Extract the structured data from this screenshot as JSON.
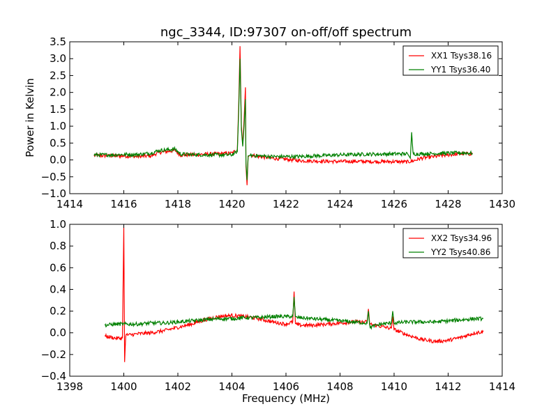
{
  "figure": {
    "title": "ngc_3344, ID:97307 on-off/off spectrum",
    "xlabel": "Frequency (MHz)",
    "ylabel": "Power in Kelvin"
  },
  "chart_data": [
    {
      "type": "line",
      "title": "ngc_3344, ID:97307 on-off/off spectrum",
      "xlabel": "",
      "ylabel": "Power in Kelvin",
      "xlim": [
        1414,
        1430
      ],
      "ylim": [
        -1.0,
        3.5
      ],
      "xticks": [
        1414,
        1416,
        1418,
        1420,
        1422,
        1424,
        1426,
        1428,
        1430
      ],
      "yticks": [
        -1.0,
        -0.5,
        0.0,
        0.5,
        1.0,
        1.5,
        2.0,
        2.5,
        3.0,
        3.5
      ],
      "xtick_labels": [
        "1414",
        "1416",
        "1418",
        "1420",
        "1422",
        "1424",
        "1426",
        "1428",
        "1430"
      ],
      "ytick_labels": [
        "−1.0",
        "−0.5",
        "0.0",
        "0.5",
        "1.0",
        "1.5",
        "2.0",
        "2.5",
        "3.0",
        "3.5"
      ],
      "grid": false,
      "legend_position": "top-right",
      "series": [
        {
          "name": "XX1 Tsys38.16",
          "color": "#ff0000",
          "x": [
            1414.9,
            1415.5,
            1416.0,
            1416.5,
            1417.0,
            1417.3,
            1417.6,
            1417.9,
            1418.1,
            1418.5,
            1419.0,
            1419.5,
            1420.0,
            1420.2,
            1420.25,
            1420.3,
            1420.35,
            1420.4,
            1420.45,
            1420.5,
            1420.52,
            1420.56,
            1420.6,
            1420.7,
            1421.0,
            1421.5,
            1422.0,
            1422.5,
            1423.0,
            1423.5,
            1424.0,
            1424.5,
            1425.0,
            1425.5,
            1426.0,
            1426.5,
            1426.7,
            1427.0,
            1427.5,
            1428.0,
            1428.5,
            1428.9
          ],
          "y": [
            0.13,
            0.12,
            0.12,
            0.1,
            0.12,
            0.22,
            0.25,
            0.28,
            0.14,
            0.15,
            0.17,
            0.18,
            0.2,
            0.3,
            1.6,
            3.37,
            1.0,
            0.45,
            1.2,
            2.15,
            -0.2,
            -0.75,
            0.1,
            0.15,
            0.1,
            0.05,
            0.02,
            -0.02,
            -0.03,
            -0.04,
            -0.05,
            -0.04,
            -0.05,
            -0.05,
            -0.05,
            -0.06,
            -0.03,
            0.05,
            0.1,
            0.15,
            0.18,
            0.18
          ]
        },
        {
          "name": "YY1 Tsys36.40",
          "color": "#008000",
          "x": [
            1414.9,
            1415.5,
            1416.0,
            1416.5,
            1417.0,
            1417.3,
            1417.6,
            1417.9,
            1418.1,
            1418.5,
            1419.0,
            1419.5,
            1420.0,
            1420.2,
            1420.25,
            1420.3,
            1420.35,
            1420.4,
            1420.45,
            1420.5,
            1420.52,
            1420.56,
            1420.6,
            1420.7,
            1421.0,
            1421.5,
            1422.0,
            1422.5,
            1423.0,
            1423.5,
            1424.0,
            1424.5,
            1425.0,
            1425.5,
            1426.0,
            1426.5,
            1426.6,
            1426.65,
            1426.7,
            1427.0,
            1427.5,
            1428.0,
            1428.5,
            1428.9
          ],
          "y": [
            0.15,
            0.15,
            0.16,
            0.16,
            0.2,
            0.28,
            0.3,
            0.32,
            0.17,
            0.16,
            0.15,
            0.15,
            0.15,
            0.25,
            1.4,
            3.0,
            0.9,
            0.4,
            1.0,
            1.8,
            -0.1,
            -0.6,
            0.12,
            0.14,
            0.12,
            0.1,
            0.1,
            0.1,
            0.12,
            0.13,
            0.15,
            0.16,
            0.17,
            0.17,
            0.18,
            0.18,
            0.05,
            0.82,
            0.18,
            0.18,
            0.19,
            0.2,
            0.21,
            0.2
          ]
        }
      ]
    },
    {
      "type": "line",
      "title": "",
      "xlabel": "Frequency (MHz)",
      "ylabel": "",
      "xlim": [
        1398,
        1414
      ],
      "ylim": [
        -0.4,
        1.0
      ],
      "xticks": [
        1398,
        1400,
        1402,
        1404,
        1406,
        1408,
        1410,
        1412,
        1414
      ],
      "yticks": [
        -0.4,
        -0.2,
        0.0,
        0.2,
        0.4,
        0.6,
        0.8,
        1.0
      ],
      "xtick_labels": [
        "1398",
        "1400",
        "1402",
        "1404",
        "1406",
        "1408",
        "1410",
        "1412",
        "1414"
      ],
      "ytick_labels": [
        "−0.4",
        "−0.2",
        "0.0",
        "0.2",
        "0.4",
        "0.6",
        "0.8",
        "1.0"
      ],
      "grid": false,
      "legend_position": "top-right",
      "series": [
        {
          "name": "XX2 Tsys34.96",
          "color": "#ff0000",
          "x": [
            1399.3,
            1399.7,
            1399.95,
            1400.0,
            1400.03,
            1400.07,
            1400.2,
            1400.5,
            1401.0,
            1401.5,
            1402.0,
            1402.5,
            1403.0,
            1403.5,
            1404.0,
            1404.5,
            1405.0,
            1405.5,
            1406.0,
            1406.25,
            1406.3,
            1406.35,
            1406.5,
            1407.0,
            1407.5,
            1408.0,
            1408.5,
            1409.0,
            1409.05,
            1409.1,
            1409.5,
            1409.9,
            1409.95,
            1410.0,
            1410.5,
            1411.0,
            1411.5,
            1412.0,
            1412.5,
            1413.0,
            1413.3
          ],
          "y": [
            -0.03,
            -0.05,
            -0.05,
            0.97,
            -0.27,
            -0.02,
            -0.02,
            -0.01,
            0.0,
            0.02,
            0.05,
            0.08,
            0.12,
            0.15,
            0.16,
            0.15,
            0.13,
            0.1,
            0.08,
            0.1,
            0.38,
            0.08,
            0.07,
            0.07,
            0.08,
            0.09,
            0.1,
            0.1,
            0.22,
            0.08,
            0.06,
            0.04,
            0.15,
            0.03,
            -0.02,
            -0.06,
            -0.08,
            -0.07,
            -0.04,
            0.0,
            0.01
          ]
        },
        {
          "name": "YY2 Tsys40.86",
          "color": "#008000",
          "x": [
            1399.3,
            1399.7,
            1400.0,
            1400.5,
            1401.0,
            1401.5,
            1402.0,
            1402.5,
            1403.0,
            1403.5,
            1404.0,
            1404.5,
            1405.0,
            1405.5,
            1406.0,
            1406.25,
            1406.3,
            1406.35,
            1406.5,
            1407.0,
            1407.5,
            1408.0,
            1408.5,
            1409.0,
            1409.05,
            1409.1,
            1409.5,
            1409.9,
            1409.95,
            1410.0,
            1410.5,
            1411.0,
            1411.5,
            1412.0,
            1412.5,
            1413.0,
            1413.3
          ],
          "y": [
            0.07,
            0.08,
            0.08,
            0.08,
            0.09,
            0.09,
            0.1,
            0.11,
            0.12,
            0.13,
            0.13,
            0.14,
            0.14,
            0.15,
            0.15,
            0.15,
            0.33,
            0.14,
            0.14,
            0.13,
            0.12,
            0.11,
            0.1,
            0.09,
            0.2,
            0.05,
            0.08,
            0.09,
            0.2,
            0.09,
            0.1,
            0.1,
            0.1,
            0.11,
            0.12,
            0.13,
            0.13
          ]
        }
      ]
    }
  ]
}
